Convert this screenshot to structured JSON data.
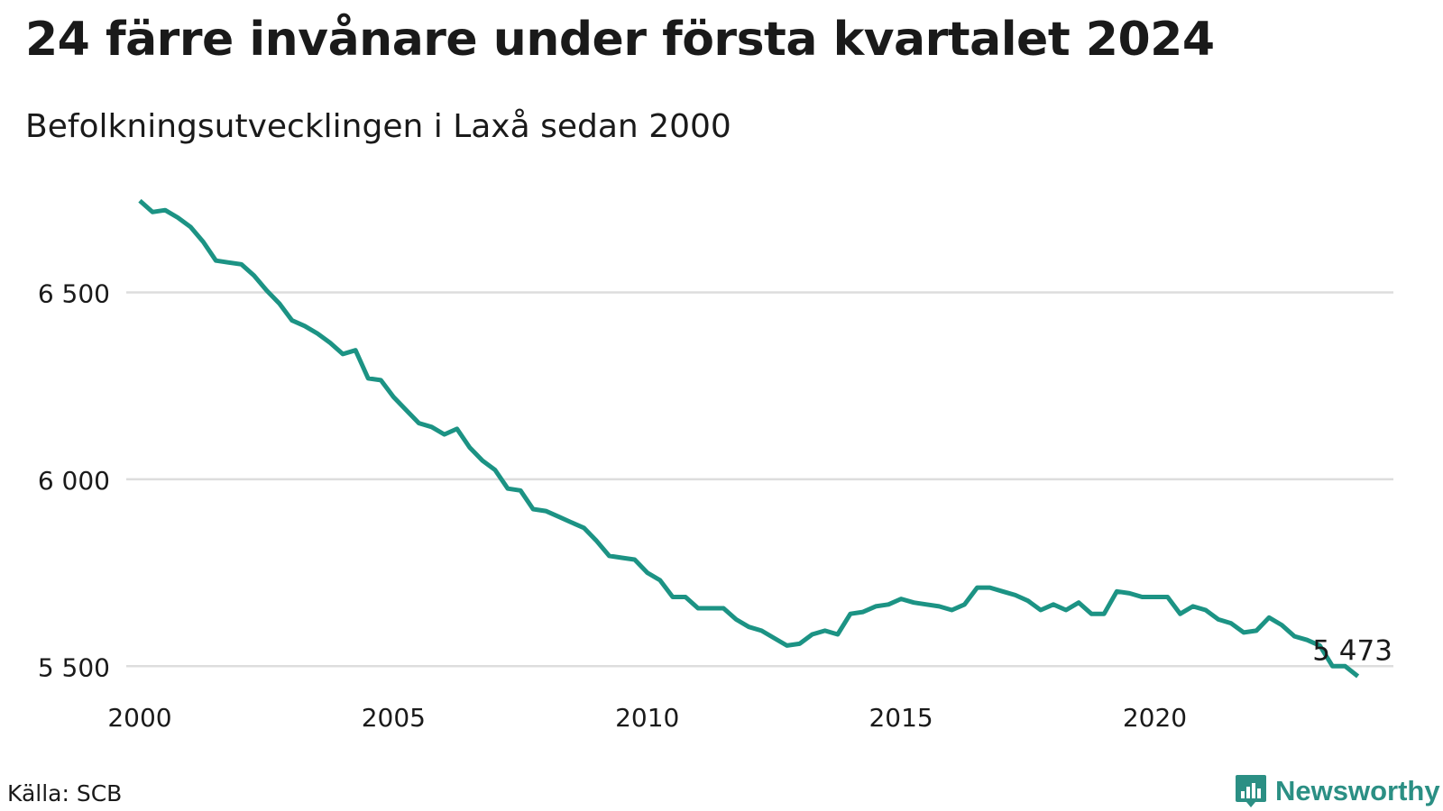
{
  "header": {
    "title": "24 färre invånare under första kvartalet 2024",
    "subtitle": "Befolkningsutvecklingen i Laxå sedan 2000"
  },
  "footer": {
    "source": "Källa: SCB",
    "brand": "Newsworthy",
    "brand_icon": "bar-chart-speech-bubble-icon"
  },
  "colors": {
    "line": "#1c9384",
    "grid": "#dddddd",
    "brand": "#2b8f84"
  },
  "chart_data": {
    "type": "line",
    "title": "24 färre invånare under första kvartalet 2024",
    "subtitle": "Befolkningsutvecklingen i Laxå sedan 2000",
    "xlabel": "",
    "ylabel": "",
    "xlim": [
      2000,
      2024.7
    ],
    "ylim": [
      5450,
      6800
    ],
    "x_ticks": [
      2000,
      2005,
      2010,
      2015,
      2020
    ],
    "x_tick_labels": [
      "2000",
      "2005",
      "2010",
      "2015",
      "2020"
    ],
    "y_ticks": [
      5500,
      6000,
      6500
    ],
    "y_tick_labels": [
      "5 500",
      "6 000",
      "6 500"
    ],
    "grid": "horizontal",
    "legend": "none",
    "annotation": {
      "label": "5 473",
      "x": 2024.0,
      "y": 5473
    },
    "series": [
      {
        "x": [
          2000.0,
          2000.25,
          2000.5,
          2000.75,
          2001.0,
          2001.25,
          2001.5,
          2001.75,
          2002.0,
          2002.25,
          2002.5,
          2002.75,
          2003.0,
          2003.25,
          2003.5,
          2003.75,
          2004.0,
          2004.25,
          2004.5,
          2004.75,
          2005.0,
          2005.25,
          2005.5,
          2005.75,
          2006.0,
          2006.25,
          2006.5,
          2006.75,
          2007.0,
          2007.25,
          2007.5,
          2007.75,
          2008.0,
          2008.25,
          2008.5,
          2008.75,
          2009.0,
          2009.25,
          2009.5,
          2009.75,
          2010.0,
          2010.25,
          2010.5,
          2010.75,
          2011.0,
          2011.25,
          2011.5,
          2011.75,
          2012.0,
          2012.25,
          2012.5,
          2012.75,
          2013.0,
          2013.25,
          2013.5,
          2013.75,
          2014.0,
          2014.25,
          2014.5,
          2014.75,
          2015.0,
          2015.25,
          2015.5,
          2015.75,
          2016.0,
          2016.25,
          2016.5,
          2016.75,
          2017.0,
          2017.25,
          2017.5,
          2017.75,
          2018.0,
          2018.25,
          2018.5,
          2018.75,
          2019.0,
          2019.25,
          2019.5,
          2019.75,
          2020.0,
          2020.25,
          2020.5,
          2020.75,
          2021.0,
          2021.25,
          2021.5,
          2021.75,
          2022.0,
          2022.25,
          2022.5,
          2022.75,
          2023.0,
          2023.25,
          2023.5,
          2023.75,
          2024.0
        ],
        "values": [
          6745,
          6715,
          6720,
          6700,
          6675,
          6635,
          6585,
          6580,
          6575,
          6545,
          6505,
          6470,
          6425,
          6410,
          6390,
          6365,
          6335,
          6345,
          6270,
          6265,
          6220,
          6185,
          6150,
          6140,
          6120,
          6135,
          6085,
          6050,
          6025,
          5975,
          5970,
          5920,
          5915,
          5900,
          5885,
          5870,
          5835,
          5795,
          5790,
          5785,
          5750,
          5730,
          5685,
          5685,
          5655,
          5655,
          5655,
          5625,
          5605,
          5595,
          5575,
          5555,
          5560,
          5585,
          5595,
          5585,
          5640,
          5645,
          5660,
          5665,
          5680,
          5670,
          5665,
          5660,
          5650,
          5665,
          5710,
          5710,
          5700,
          5690,
          5675,
          5650,
          5665,
          5650,
          5670,
          5640,
          5640,
          5700,
          5695,
          5685,
          5685,
          5685,
          5640,
          5660,
          5650,
          5625,
          5615,
          5590,
          5595,
          5630,
          5610,
          5580,
          5570,
          5555,
          5500,
          5500,
          5473
        ]
      }
    ]
  }
}
